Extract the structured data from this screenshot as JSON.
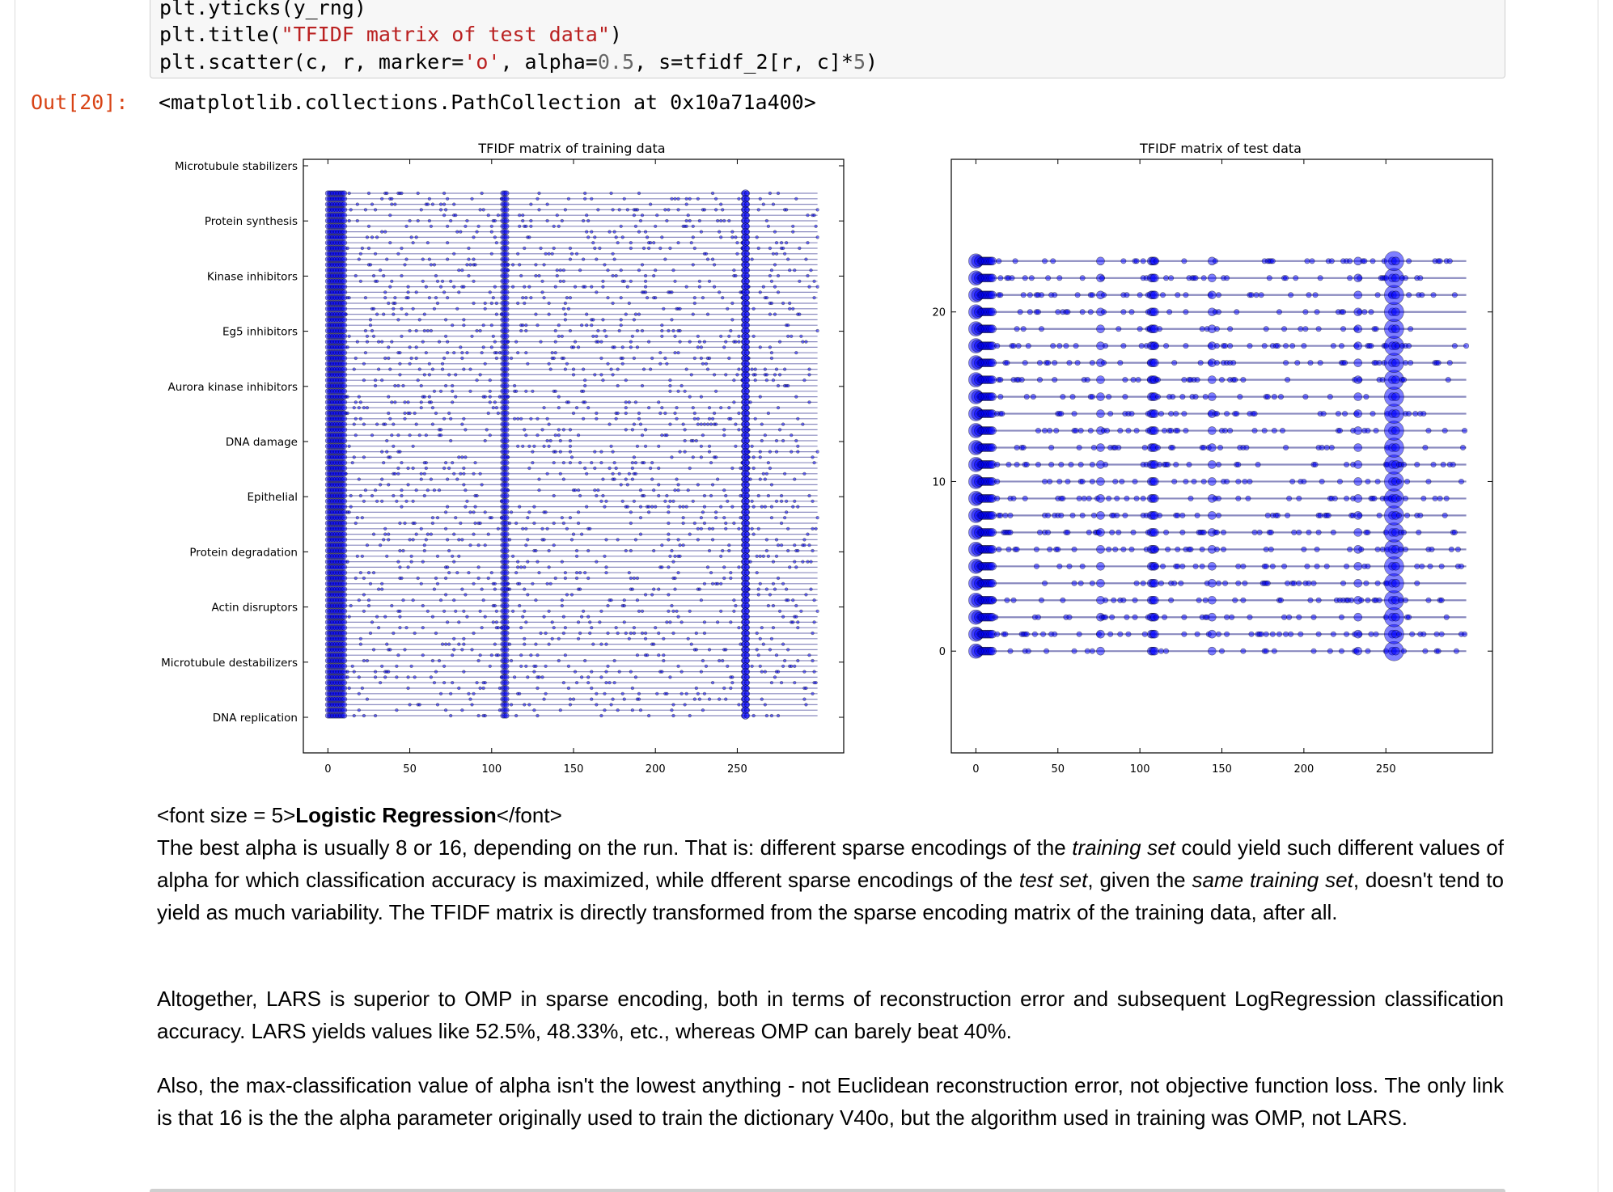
{
  "code_cell": {
    "line1": "plt.yticks(y_rng)",
    "line2_pre": "plt.title(",
    "line2_str": "\"TFIDF matrix of test data\"",
    "line2_post": ")",
    "line3_a": "plt.scatter(c, r, marker=",
    "line3_str": "'o'",
    "line3_b": ", alpha=",
    "line3_num1": "0.5",
    "line3_c": ", s=tfidf_2[r, c]*",
    "line3_num2": "5",
    "line3_d": ")"
  },
  "output": {
    "prompt": "Out[20]:",
    "text": "<matplotlib.collections.PathCollection at 0x10a71a400>"
  },
  "chart_data": [
    {
      "type": "scatter",
      "title": "TFIDF matrix of training data",
      "xlabel": "",
      "ylabel": "",
      "xlim": [
        -15,
        315
      ],
      "x_ticks": [
        "0",
        "50",
        "100",
        "150",
        "200",
        "250"
      ],
      "y_tick_labels": [
        "Microtubule stabilizers",
        "Protein synthesis",
        "Kinase inhibitors",
        "Eg5 inhibitors",
        "Aurora kinase inhibitors",
        "DNA damage",
        "Epithelial",
        "Protein degradation",
        "Actin disruptors",
        "Microtubule destabilizers",
        "DNA replication"
      ],
      "rows": 96,
      "columns": 300,
      "marker": "o",
      "alpha": 0.5,
      "color": "#0000ff",
      "dominant_columns": [
        0,
        1,
        2,
        3,
        4,
        5,
        6,
        7,
        8,
        9,
        10,
        107,
        108,
        109,
        254,
        255,
        256
      ],
      "grid": false
    },
    {
      "type": "scatter",
      "title": "TFIDF matrix of test data",
      "xlabel": "",
      "ylabel": "",
      "xlim": [
        -15,
        315
      ],
      "ylim": [
        -6,
        29
      ],
      "x_ticks": [
        "0",
        "50",
        "100",
        "150",
        "200",
        "250"
      ],
      "y_ticks": [
        "0",
        "10",
        "20"
      ],
      "rows": 24,
      "columns": 300,
      "marker": "o",
      "alpha": 0.5,
      "color": "#0000ff",
      "dominant_columns": [
        0,
        1,
        2,
        3,
        4,
        5,
        6,
        7,
        8,
        9,
        10,
        76,
        107,
        108,
        109,
        144,
        233,
        254,
        255,
        256
      ],
      "grid": false
    }
  ],
  "markdown": {
    "heading_pre": "<font size = 5>",
    "heading_bold": "Logistic Regression",
    "heading_post": "</font>",
    "p1_a": "The best alpha is usually 8 or 16, depending on the run. That is: different sparse encodings of the ",
    "p1_em1": "training set",
    "p1_b": " could yield such different values of alpha for which classification accuracy is maximized, while dfferent sparse encodings of the ",
    "p1_em2": "test set",
    "p1_c": ", given the ",
    "p1_em3": "same training set",
    "p1_d": ", doesn't tend to yield as much variability. The TFIDF matrix is directly transformed from the sparse encoding matrix of the training data, after all.",
    "p2": "Altogether, LARS is superior to OMP in sparse encoding, both in terms of reconstruction error and subsequent LogRegression classification accuracy. LARS yields values like 52.5%, 48.33%, etc., whereas OMP can barely beat 40%.",
    "p3": "Also, the max-classification value of alpha isn't the lowest anything - not Euclidean reconstruction error, not objective function loss. The only link is that 16 is the the alpha parameter originally used to train the dictionary V40o, but the algorithm used in training was OMP, not LARS."
  }
}
